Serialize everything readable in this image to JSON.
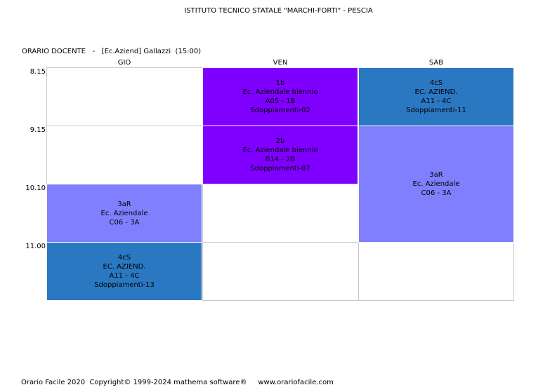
{
  "header": {
    "school": "ISTITUTO TECNICO STATALE \"MARCHI-FORTI\" - PESCIA",
    "teacher": "ORARIO DOCENTE   -   [Ec.Aziend] Gallazzi  (15:00)"
  },
  "days": [
    "GIO",
    "VEN",
    "SAB"
  ],
  "times": [
    "8.15",
    "9.15",
    "10.10",
    "11.00"
  ],
  "colors": {
    "violet": "#8000ff",
    "steel_blue": "#2b78c2",
    "periwinkle": "#8080ff",
    "grid_line": "#c8c8c8"
  },
  "lessons": {
    "ven_1": {
      "lines": [
        "1b",
        "Ec. Aziendale biennio",
        "A05 - 1B",
        "Sdoppiamenti-02"
      ]
    },
    "ven_2": {
      "lines": [
        "2b",
        "Ec. Aziendale biennio",
        "B14 - 2B",
        "Sdoppiamenti-07"
      ]
    },
    "sab_1": {
      "lines": [
        "4cS",
        "EC. AZIEND.",
        "A11 - 4C",
        "Sdoppiamenti-11"
      ]
    },
    "sab_2": {
      "lines": [
        "3aR",
        "Ec. Aziendale",
        "C06 - 3A"
      ]
    },
    "gio_3": {
      "lines": [
        "3aR",
        "Ec. Aziendale",
        "C06 - 3A"
      ]
    },
    "gio_4": {
      "lines": [
        "4cS",
        "EC. AZIEND.",
        "A11 - 4C",
        "Sdoppiamenti-13"
      ]
    }
  },
  "footer": "Orario Facile 2020  Copyright© 1999-2024 mathema software®     www.orariofacile.com"
}
